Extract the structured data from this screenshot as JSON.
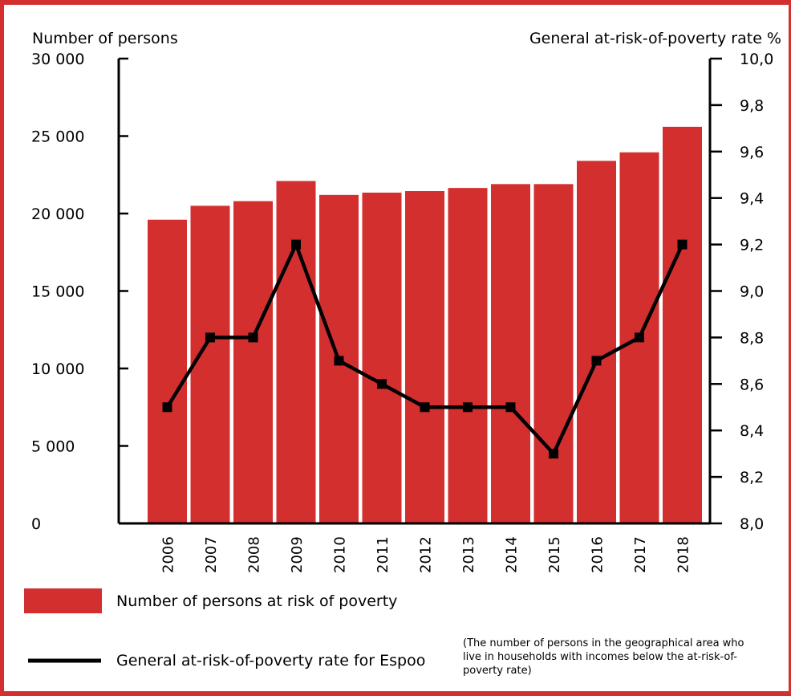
{
  "chart_data": {
    "type": "bar",
    "categories": [
      "2006",
      "2007",
      "2008",
      "2009",
      "2010",
      "2011",
      "2012",
      "2013",
      "2014",
      "2015",
      "2016",
      "2017",
      "2018"
    ],
    "series": [
      {
        "name": "Number of persons at risk of poverty",
        "type": "bar",
        "axis": "left",
        "color": "#d32f2f",
        "values": [
          19600,
          20500,
          20800,
          22100,
          21200,
          21350,
          21450,
          21650,
          21900,
          21900,
          23400,
          23950,
          25600
        ]
      },
      {
        "name": "General at-risk-of-poverty rate for Espoo",
        "type": "line",
        "axis": "right",
        "color": "#000000",
        "values": [
          8.5,
          8.8,
          8.8,
          9.2,
          8.7,
          8.6,
          8.5,
          8.5,
          8.5,
          8.3,
          8.7,
          8.8,
          9.2
        ]
      }
    ],
    "left_axis": {
      "label": "Number of persons",
      "range": [
        0,
        30000
      ],
      "ticks": [
        0,
        5000,
        10000,
        15000,
        20000,
        25000,
        30000
      ],
      "tick_labels": [
        "0",
        "5 000",
        "10 000",
        "15 000",
        "20 000",
        "25 000",
        "30 000"
      ]
    },
    "right_axis": {
      "label": "General at-risk-of-poverty rate %",
      "range": [
        8.0,
        10.0
      ],
      "ticks": [
        8.0,
        8.2,
        8.4,
        8.6,
        8.8,
        9.0,
        9.2,
        9.4,
        9.6,
        9.8,
        10.0
      ],
      "tick_labels": [
        "8,0",
        "8,2",
        "8,4",
        "8,6",
        "8,8",
        "9,0",
        "9,2",
        "9,4",
        "9,6",
        "9,8",
        "10,0"
      ]
    },
    "grid": false,
    "legend_position": "bottom-left",
    "note": "(The number of persons in the geographical area who live in households with incomes below the at-risk-of-poverty rate)"
  },
  "legend": {
    "bar_label": "Number of persons at risk of poverty",
    "line_label": "General at-risk-of-poverty rate for Espoo"
  },
  "footnote": {
    "line1": "(The number of persons in the geographical area who",
    "line2": "live in households with incomes below the at-risk-of-",
    "line3": "poverty rate)"
  },
  "colors": {
    "accent": "#d32f2f",
    "line": "#000000"
  }
}
